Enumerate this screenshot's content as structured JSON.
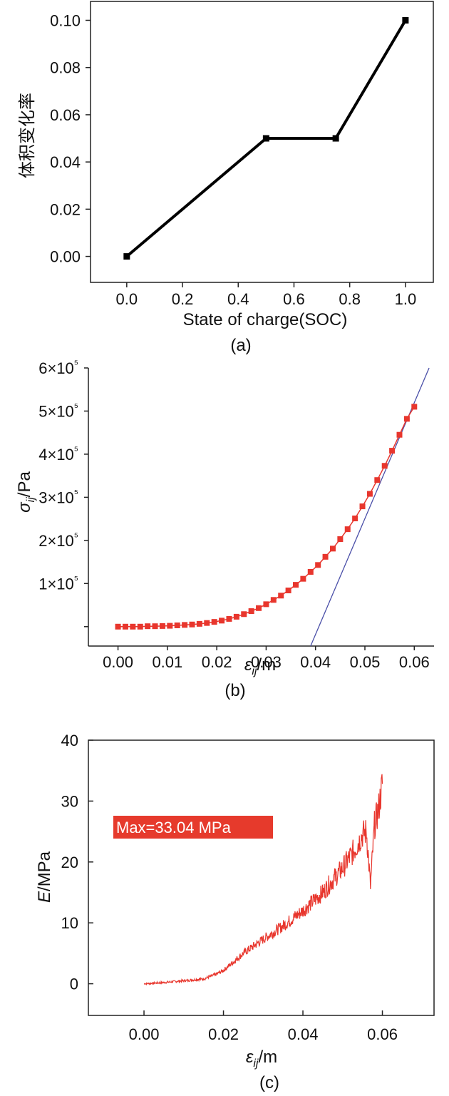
{
  "chart_data": [
    {
      "type": "line",
      "panel": "(a)",
      "xlabel": "State of charge(SOC)",
      "ylabel": "体积变化率",
      "xlim": [
        -0.13,
        1.1
      ],
      "ylim": [
        -0.011,
        0.108
      ],
      "xticks": [
        "0.0",
        "0.2",
        "0.4",
        "0.6",
        "0.8",
        "1.0"
      ],
      "yticks": [
        "0.00",
        "0.02",
        "0.04",
        "0.06",
        "0.08",
        "0.10"
      ],
      "x": [
        0.0,
        0.5,
        0.75,
        1.0
      ],
      "series": [
        {
          "values": [
            0.0,
            0.05,
            0.05,
            0.1
          ],
          "color": "#000000",
          "marker": "square"
        }
      ],
      "grid": false
    },
    {
      "type": "scatter",
      "panel": "(b)",
      "xlabel": "εij/m",
      "ylabel": "σij/Pa",
      "xlim": [
        -0.006,
        0.064
      ],
      "ylim": [
        -45000,
        600000
      ],
      "xticks": [
        "0.00",
        "0.01",
        "0.02",
        "0.03",
        "0.04",
        "0.05",
        "0.06"
      ],
      "yticks": [
        "1×10⁵",
        "2×10⁵",
        "3×10⁵",
        "4×10⁵",
        "5×10⁵",
        "6×10⁵"
      ],
      "x": [
        0.0,
        0.0015,
        0.003,
        0.0045,
        0.006,
        0.0075,
        0.009,
        0.0105,
        0.012,
        0.0135,
        0.015,
        0.0165,
        0.018,
        0.0195,
        0.021,
        0.0225,
        0.024,
        0.0255,
        0.027,
        0.0285,
        0.03,
        0.0315,
        0.033,
        0.0345,
        0.036,
        0.0375,
        0.039,
        0.0405,
        0.042,
        0.0435,
        0.045,
        0.0465,
        0.048,
        0.0495,
        0.051,
        0.0525,
        0.054,
        0.0555,
        0.057,
        0.0585,
        0.06
      ],
      "series": [
        {
          "values": [
            0,
            0,
            0,
            0,
            1000,
            1000,
            1500,
            2000,
            3000,
            4000,
            5000,
            6500,
            8500,
            11000,
            14000,
            18000,
            23000,
            29000,
            36000,
            43000,
            52000,
            62000,
            72000,
            84000,
            97000,
            111000,
            127000,
            143000,
            162000,
            181000,
            203000,
            226000,
            251000,
            279000,
            308000,
            340000,
            373000,
            408000,
            445000,
            482000,
            510000
          ],
          "color": "#e8362d",
          "marker": "square"
        },
        {
          "x": [
            0.039,
            0.063
          ],
          "values": [
            -45000,
            600000
          ],
          "color": "#4a4fa8",
          "marker": "none"
        }
      ],
      "grid": false
    },
    {
      "type": "line",
      "panel": "(c)",
      "xlabel": "εij/m",
      "ylabel": "E/MPa",
      "xlim": [
        -0.014,
        0.073
      ],
      "ylim": [
        -5.2,
        40
      ],
      "xticks": [
        "0.00",
        "0.02",
        "0.04",
        "0.06"
      ],
      "yticks": [
        "0",
        "10",
        "20",
        "30",
        "40"
      ],
      "x": [
        0.0,
        0.005,
        0.01,
        0.015,
        0.018,
        0.02,
        0.022,
        0.025,
        0.03,
        0.035,
        0.04,
        0.045,
        0.05,
        0.053,
        0.055,
        0.056,
        0.057,
        0.058,
        0.059,
        0.06
      ],
      "series": [
        {
          "values": [
            0.0,
            0.2,
            0.5,
            0.8,
            1.5,
            2.2,
            3.3,
            5.0,
            7.3,
            9.5,
            12.0,
            15.0,
            19.0,
            22.0,
            24.5,
            25.0,
            16.0,
            26.0,
            28.5,
            33.0
          ],
          "color": "#e8362d",
          "marker": "none"
        }
      ],
      "annotation": "Max=33.04 MPa",
      "annotation_color": "#e63a2c",
      "grid": false
    }
  ]
}
